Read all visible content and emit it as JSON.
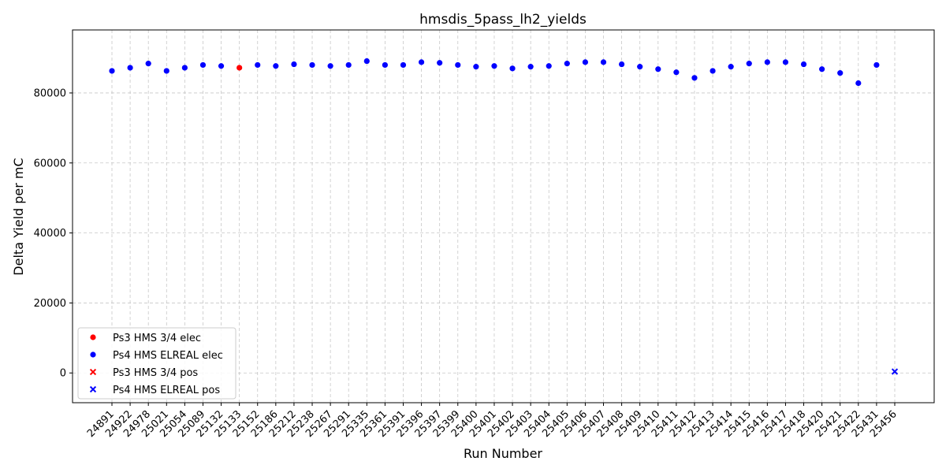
{
  "chart_data": {
    "type": "scatter",
    "title": "hmsdis_5pass_lh2_yields",
    "xlabel": "Run Number",
    "ylabel": "Delta Yield per mC",
    "categories": [
      "24891",
      "24922",
      "24978",
      "25021",
      "25054",
      "25089",
      "25132",
      "25133",
      "25152",
      "25186",
      "25212",
      "25238",
      "25267",
      "25291",
      "25335",
      "25361",
      "25391",
      "25396",
      "25397",
      "25399",
      "25400",
      "25401",
      "25402",
      "25403",
      "25404",
      "25405",
      "25406",
      "25407",
      "25408",
      "25409",
      "25410",
      "25411",
      "25412",
      "25413",
      "25414",
      "25415",
      "25416",
      "25417",
      "25418",
      "25420",
      "25421",
      "25422",
      "25431",
      "25456"
    ],
    "ylim": [
      -8500,
      98000
    ],
    "yticks": [
      0,
      20000,
      40000,
      60000,
      80000
    ],
    "grid": true,
    "legend_position": "lower-left",
    "series": [
      {
        "name": "Ps3 HMS 3/4 elec",
        "marker": "circle",
        "color": "#ff0000",
        "points": [
          {
            "x": "25133",
            "y": 87200
          }
        ]
      },
      {
        "name": "Ps4 HMS ELREAL elec",
        "marker": "circle",
        "color": "#0000ff",
        "points": [
          {
            "x": "24891",
            "y": 86300
          },
          {
            "x": "24922",
            "y": 87200
          },
          {
            "x": "24978",
            "y": 88400
          },
          {
            "x": "25021",
            "y": 86300
          },
          {
            "x": "25054",
            "y": 87200
          },
          {
            "x": "25089",
            "y": 88000
          },
          {
            "x": "25132",
            "y": 87700
          },
          {
            "x": "25152",
            "y": 88000
          },
          {
            "x": "25186",
            "y": 87700
          },
          {
            "x": "25212",
            "y": 88200
          },
          {
            "x": "25238",
            "y": 88000
          },
          {
            "x": "25267",
            "y": 87700
          },
          {
            "x": "25291",
            "y": 88000
          },
          {
            "x": "25335",
            "y": 89100
          },
          {
            "x": "25361",
            "y": 88000
          },
          {
            "x": "25391",
            "y": 88000
          },
          {
            "x": "25396",
            "y": 88800
          },
          {
            "x": "25397",
            "y": 88600
          },
          {
            "x": "25399",
            "y": 88000
          },
          {
            "x": "25400",
            "y": 87500
          },
          {
            "x": "25401",
            "y": 87700
          },
          {
            "x": "25402",
            "y": 87000
          },
          {
            "x": "25403",
            "y": 87500
          },
          {
            "x": "25404",
            "y": 87700
          },
          {
            "x": "25405",
            "y": 88400
          },
          {
            "x": "25406",
            "y": 88800
          },
          {
            "x": "25407",
            "y": 88800
          },
          {
            "x": "25408",
            "y": 88200
          },
          {
            "x": "25409",
            "y": 87500
          },
          {
            "x": "25410",
            "y": 86800
          },
          {
            "x": "25411",
            "y": 85900
          },
          {
            "x": "25412",
            "y": 84300
          },
          {
            "x": "25413",
            "y": 86300
          },
          {
            "x": "25414",
            "y": 87500
          },
          {
            "x": "25415",
            "y": 88400
          },
          {
            "x": "25416",
            "y": 88800
          },
          {
            "x": "25417",
            "y": 88800
          },
          {
            "x": "25418",
            "y": 88200
          },
          {
            "x": "25420",
            "y": 86800
          },
          {
            "x": "25421",
            "y": 85700
          },
          {
            "x": "25422",
            "y": 82800
          },
          {
            "x": "25431",
            "y": 88000
          }
        ]
      },
      {
        "name": "Ps3 HMS 3/4 pos",
        "marker": "x",
        "color": "#ff0000",
        "points": []
      },
      {
        "name": "Ps4 HMS ELREAL pos",
        "marker": "x",
        "color": "#0000ff",
        "points": [
          {
            "x": "25456",
            "y": 400
          }
        ]
      }
    ]
  }
}
